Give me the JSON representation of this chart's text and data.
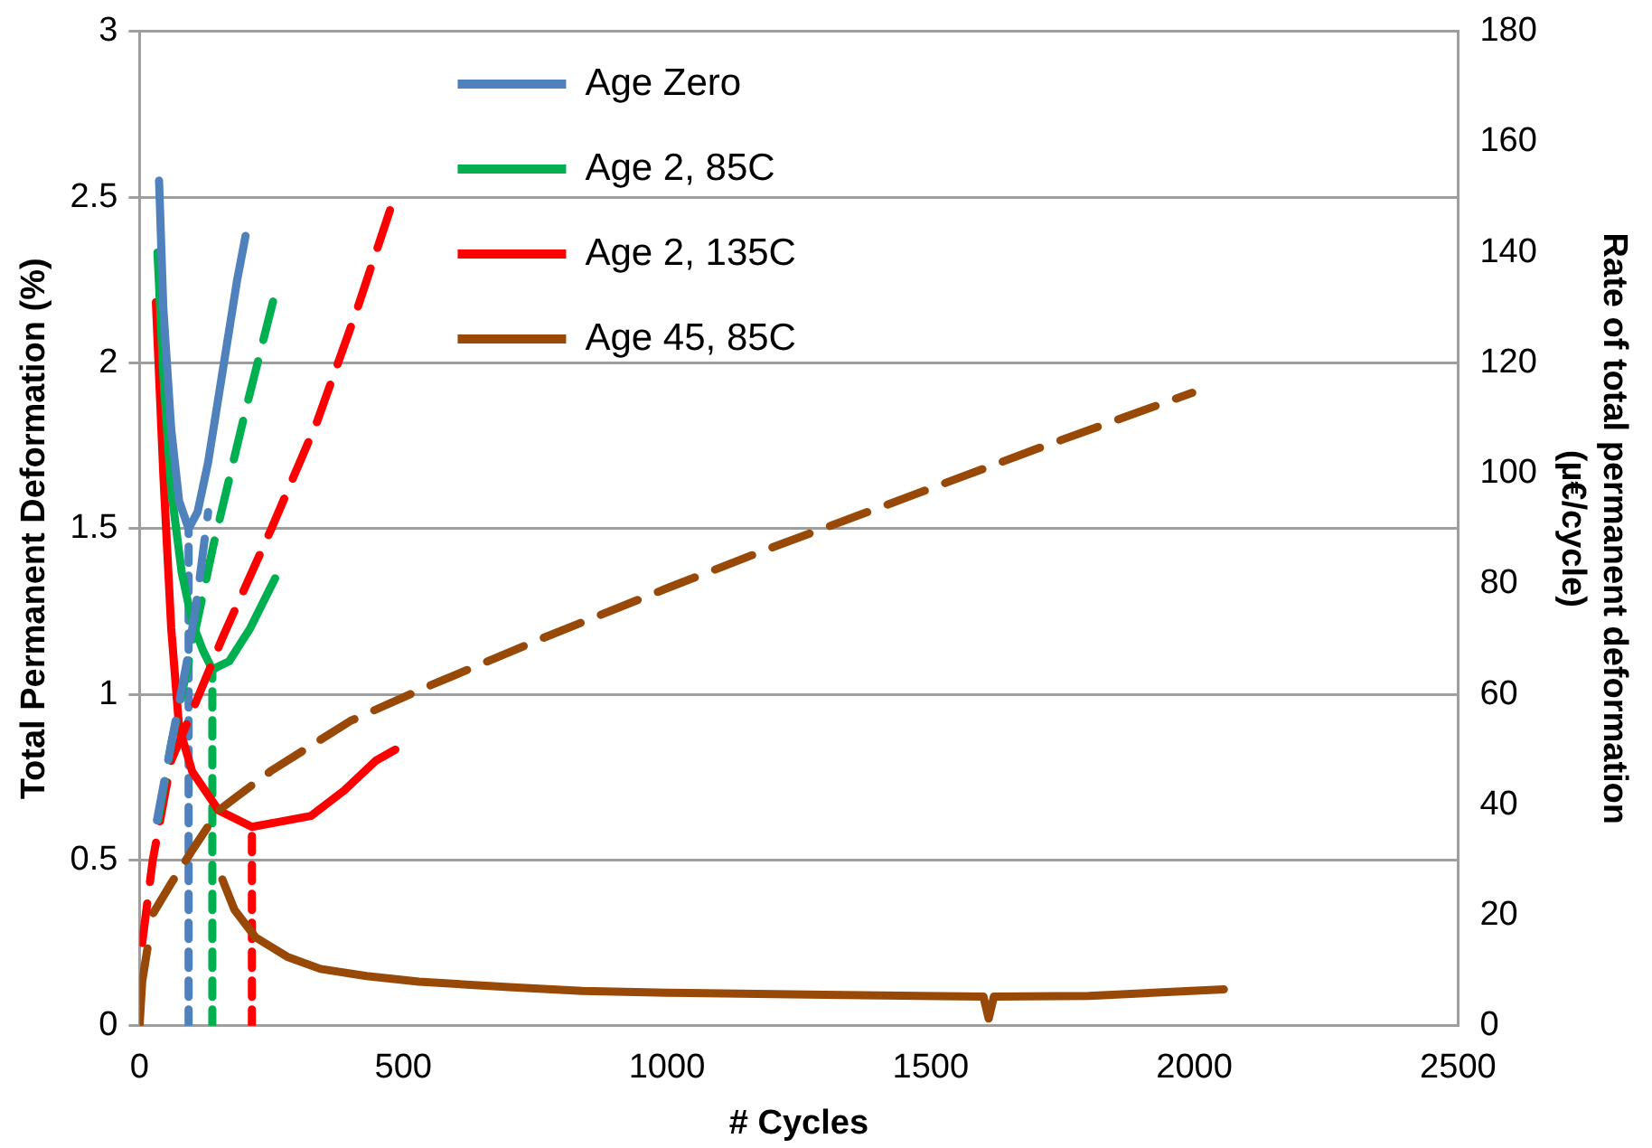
{
  "chart_data": {
    "type": "line",
    "xlabel": "# Cycles",
    "ylabel": "Total Permanent Deformation (%)",
    "y2label": "Rate of total permanent deformation (µ€/cycle)",
    "xlim": [
      0,
      2500
    ],
    "xticks": [
      0,
      500,
      1000,
      1500,
      2000,
      2500
    ],
    "ylim": [
      0,
      3
    ],
    "yticks": [
      0,
      0.5,
      1,
      1.5,
      2,
      2.5,
      3
    ],
    "y2lim": [
      0,
      180
    ],
    "y2ticks": [
      0,
      20,
      40,
      60,
      80,
      100,
      120,
      140,
      160,
      180
    ],
    "grid": "y",
    "legend": "top",
    "marker": "none",
    "series": [
      {
        "name": "Age Zero",
        "color": "#4f81bd",
        "axis": "y",
        "line_style": "dashed",
        "x": [
          33,
          60,
          90,
          110,
          130
        ],
        "values": [
          0.62,
          0.85,
          1.1,
          1.3,
          1.55
        ]
      },
      {
        "name": "Age 2, 85C",
        "color": "#00b050",
        "axis": "y",
        "line_style": "dashed",
        "x": [
          35,
          60,
          100,
          140,
          200,
          257
        ],
        "values": [
          0.62,
          0.85,
          1.15,
          1.45,
          1.85,
          2.21
        ]
      },
      {
        "name": "Age 2, 135C",
        "color": "#ff0000",
        "axis": "y",
        "line_style": "dashed",
        "x": [
          5,
          25,
          60,
          100,
          157,
          250,
          336,
          410,
          481
        ],
        "values": [
          0.25,
          0.5,
          0.8,
          0.95,
          1.17,
          1.5,
          1.82,
          2.15,
          2.49
        ]
      },
      {
        "name": "Age 45, 85C",
        "color": "#984807",
        "axis": "y",
        "line_style": "dashed",
        "x": [
          26,
          60,
          100,
          150,
          250,
          400,
          541,
          765,
          1000,
          1194,
          1414,
          1700,
          1996
        ],
        "values": [
          0.34,
          0.43,
          0.53,
          0.65,
          0.77,
          0.92,
          1.02,
          1.17,
          1.32,
          1.44,
          1.57,
          1.74,
          1.91
        ]
      },
      {
        "color": "#4f81bd",
        "axis": "y2",
        "line_style": "solid",
        "x": [
          37,
          45,
          60,
          75,
          93,
          110,
          130,
          160,
          185,
          201
        ],
        "values": [
          153,
          130,
          108,
          95,
          90,
          93,
          102,
          120,
          135,
          143
        ]
      },
      {
        "color": "#00b050",
        "axis": "y2",
        "line_style": "solid",
        "x": [
          34,
          45,
          60,
          80,
          100,
          120,
          138,
          170,
          210,
          257
        ],
        "values": [
          140,
          118,
          97,
          82,
          73,
          68,
          64.5,
          66,
          72,
          81
        ]
      },
      {
        "color": "#ff0000",
        "axis": "y2",
        "line_style": "solid",
        "x": [
          31,
          45,
          60,
          75,
          100,
          150,
          213,
          270,
          325,
          388,
          448,
          485
        ],
        "values": [
          131,
          100,
          72,
          54,
          46,
          39,
          36,
          37,
          38,
          42.6,
          48,
          50
        ]
      },
      {
        "color": "#984807",
        "axis": "y2",
        "line_style": "solid",
        "x": [
          0,
          5,
          15,
          100,
          157,
          180,
          220,
          280,
          343,
          430,
          530,
          700,
          840,
          1000,
          1300,
          1600,
          1610,
          1620,
          1800,
          2056
        ],
        "values": [
          0,
          8,
          14,
          null,
          26.5,
          21,
          16,
          12.5,
          10.3,
          9,
          8,
          7,
          6.3,
          6,
          5.6,
          5.3,
          1.3,
          5.3,
          5.4,
          6.6
        ]
      },
      {
        "color": "#4f81bd",
        "axis": "y2",
        "line_style": "dotted",
        "x": [
          93,
          93
        ],
        "values": [
          0,
          90
        ]
      },
      {
        "color": "#00b050",
        "axis": "y2",
        "line_style": "dotted",
        "x": [
          138,
          138
        ],
        "values": [
          0,
          64.5
        ]
      },
      {
        "color": "#ff0000",
        "axis": "y2",
        "line_style": "dotted",
        "x": [
          213,
          213
        ],
        "values": [
          0,
          36
        ]
      }
    ]
  }
}
